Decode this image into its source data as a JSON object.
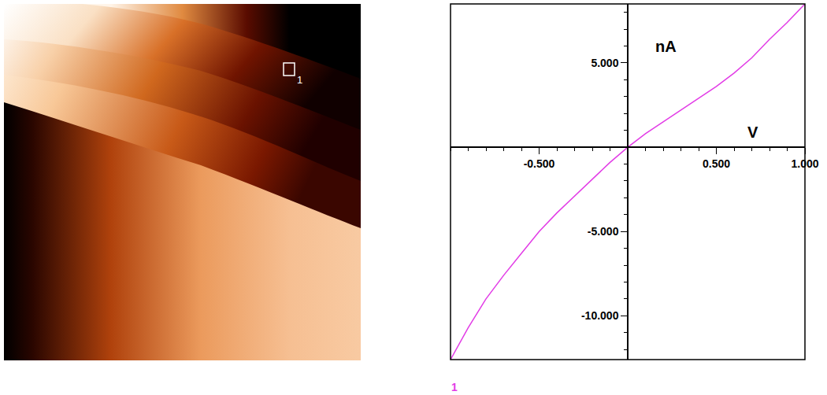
{
  "image": {
    "marker_label": "1"
  },
  "chart_data": {
    "type": "line",
    "xlabel": "V",
    "ylabel": "nA",
    "x": [
      -1.0,
      -0.9,
      -0.8,
      -0.7,
      -0.6,
      -0.5,
      -0.4,
      -0.3,
      -0.2,
      -0.1,
      0.0,
      0.1,
      0.2,
      0.3,
      0.4,
      0.5,
      0.6,
      0.7,
      0.8,
      0.9,
      1.0
    ],
    "series": [
      {
        "name": "1",
        "color": "#e23ce6",
        "values": [
          -12.6,
          -10.7,
          -9.0,
          -7.6,
          -6.3,
          -5.0,
          -3.9,
          -2.9,
          -1.9,
          -0.9,
          0.0,
          0.8,
          1.5,
          2.2,
          2.9,
          3.6,
          4.4,
          5.3,
          6.4,
          7.4,
          8.5
        ]
      }
    ],
    "xlim": [
      -1.0,
      1.0
    ],
    "ylim": [
      -12.6,
      8.5
    ],
    "xticks": [
      {
        "value": -0.5,
        "label": "-0.500"
      },
      {
        "value": 0.5,
        "label": "0.500"
      },
      {
        "value": 1.0,
        "label": "1.000"
      }
    ],
    "yticks": [
      {
        "value": 5,
        "label": "5.000"
      },
      {
        "value": -5,
        "label": "-5.000"
      },
      {
        "value": -10,
        "label": "-10.000"
      }
    ],
    "grid": false
  }
}
